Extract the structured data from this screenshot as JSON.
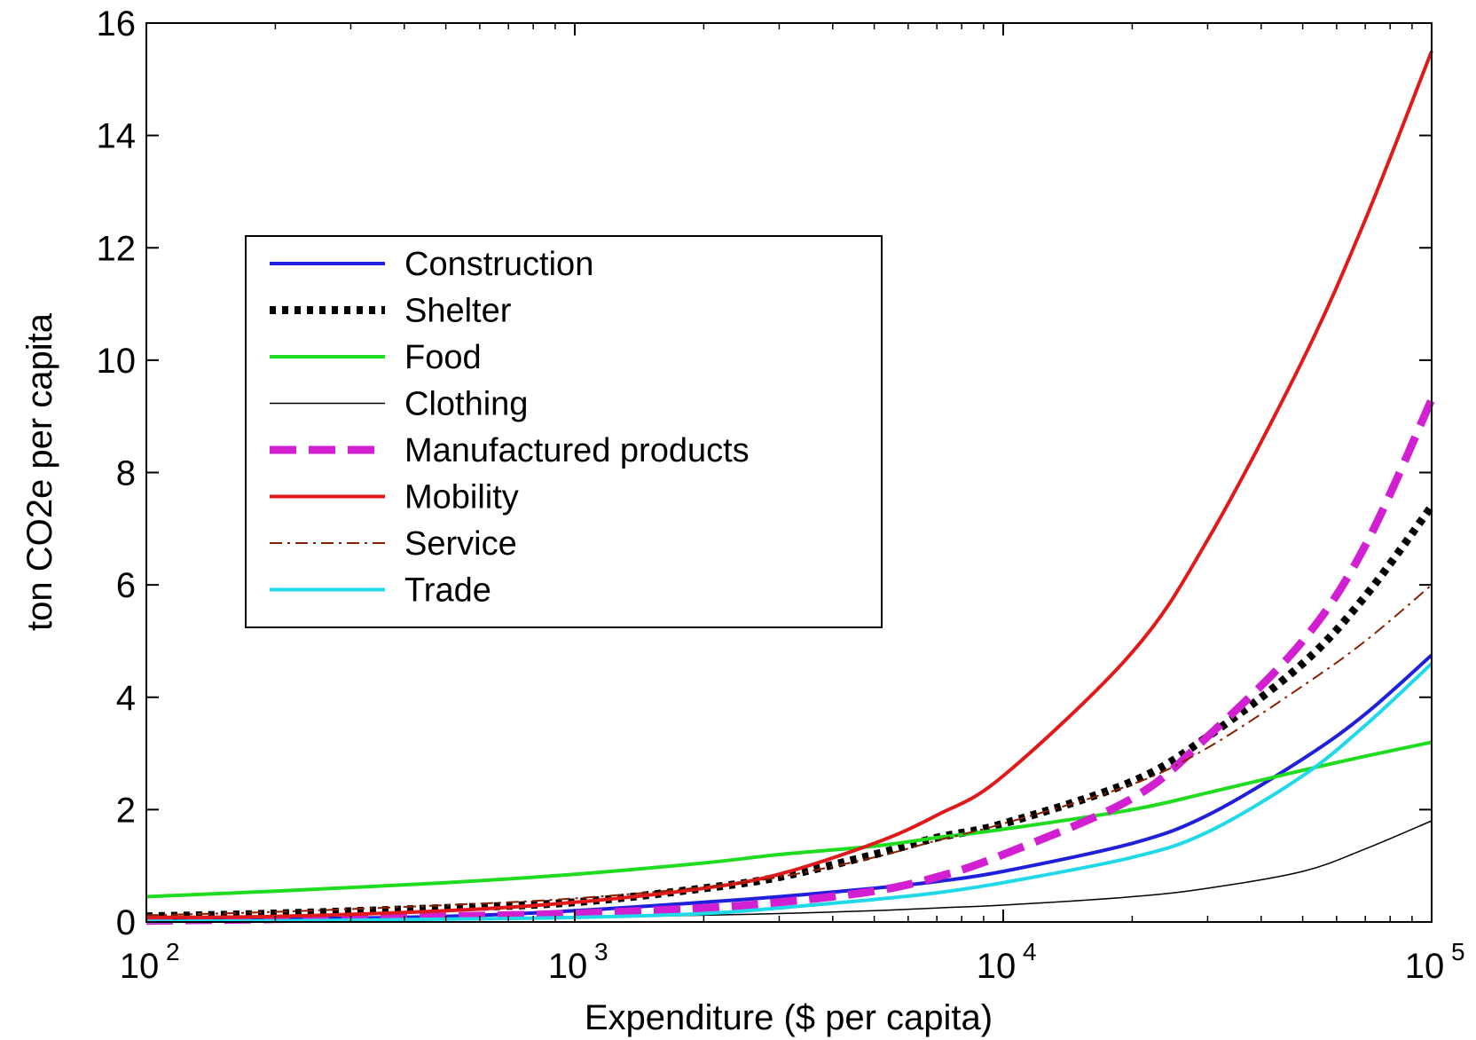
{
  "chart_data": {
    "type": "line",
    "xlabel": "Expenditure ($ per capita)",
    "ylabel": "ton CO2e per capita",
    "xscale": "log",
    "xlim": [
      100,
      100000
    ],
    "ylim": [
      0,
      16
    ],
    "grid": false,
    "legend_position": "upper-left",
    "x_ticks": [
      {
        "value": 100,
        "base": "10",
        "exp": "2"
      },
      {
        "value": 1000,
        "base": "10",
        "exp": "3"
      },
      {
        "value": 10000,
        "base": "10",
        "exp": "4"
      },
      {
        "value": 100000,
        "base": "10",
        "exp": "5"
      }
    ],
    "y_ticks": [
      0,
      2,
      4,
      6,
      8,
      10,
      12,
      14,
      16
    ],
    "x": [
      100,
      200,
      500,
      1000,
      2000,
      3000,
      5000,
      7000,
      10000,
      20000,
      30000,
      50000,
      70000,
      100000
    ],
    "series": [
      {
        "name": "Construction",
        "color": "#1f1fdc",
        "dash": "",
        "width": 4,
        "values": [
          0.02,
          0.05,
          0.1,
          0.2,
          0.35,
          0.45,
          0.6,
          0.72,
          0.9,
          1.4,
          1.9,
          2.9,
          3.7,
          4.75
        ]
      },
      {
        "name": "Shelter",
        "color": "#000000",
        "dash": "7 7",
        "width": 9,
        "values": [
          0.1,
          0.15,
          0.25,
          0.35,
          0.6,
          0.8,
          1.2,
          1.5,
          1.75,
          2.5,
          3.3,
          4.6,
          5.8,
          7.4
        ]
      },
      {
        "name": "Food",
        "color": "#1fdc1f",
        "dash": "",
        "width": 4,
        "values": [
          0.45,
          0.55,
          0.7,
          0.85,
          1.05,
          1.2,
          1.35,
          1.5,
          1.65,
          2.0,
          2.3,
          2.7,
          2.95,
          3.2
        ]
      },
      {
        "name": "Clothing",
        "color": "#000000",
        "dash": "",
        "width": 1.5,
        "values": [
          0.01,
          0.02,
          0.04,
          0.08,
          0.12,
          0.15,
          0.2,
          0.25,
          0.3,
          0.45,
          0.6,
          0.9,
          1.3,
          1.8
        ]
      },
      {
        "name": "Manufactured products",
        "color": "#d21fd2",
        "dash": "30 14",
        "width": 9,
        "values": [
          0.02,
          0.05,
          0.1,
          0.15,
          0.25,
          0.35,
          0.55,
          0.8,
          1.2,
          2.2,
          3.3,
          5.0,
          6.7,
          9.3
        ]
      },
      {
        "name": "Mobility",
        "color": "#e01a1a",
        "dash": "",
        "width": 4,
        "values": [
          0.08,
          0.1,
          0.2,
          0.35,
          0.6,
          0.85,
          1.4,
          1.9,
          2.6,
          4.8,
          6.8,
          10.0,
          12.5,
          15.5
        ]
      },
      {
        "name": "Service",
        "color": "#8b2000",
        "dash": "14 6 3 6",
        "width": 2,
        "values": [
          0.12,
          0.18,
          0.3,
          0.42,
          0.62,
          0.8,
          1.15,
          1.45,
          1.75,
          2.45,
          3.1,
          4.2,
          5.0,
          6.0
        ]
      },
      {
        "name": "Trade",
        "color": "#1fd8e8",
        "dash": "",
        "width": 4,
        "values": [
          0.01,
          0.02,
          0.05,
          0.08,
          0.15,
          0.25,
          0.4,
          0.52,
          0.7,
          1.15,
          1.6,
          2.6,
          3.5,
          4.6
        ]
      }
    ]
  }
}
